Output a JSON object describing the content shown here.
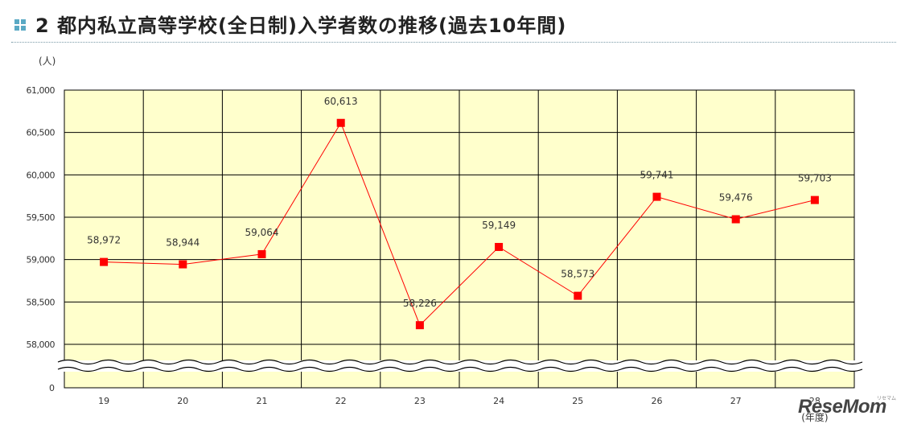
{
  "header": {
    "number": "2",
    "title": "都内私立高等学校(全日制)入学者数の推移(過去10年間)"
  },
  "watermark": {
    "brand": "ReseMom",
    "sub": "リセマム"
  },
  "colors": {
    "plot_bg": "#ffffcc",
    "series": "#ff0000",
    "grid": "#000000",
    "accent": "#5aa9c4"
  },
  "chart_data": {
    "type": "line",
    "title": "都内私立高等学校(全日制)入学者数の推移(過去10年間)",
    "ylabel": "(人)",
    "xlabel": "(年度)",
    "categories": [
      "19",
      "20",
      "21",
      "22",
      "23",
      "24",
      "25",
      "26",
      "27",
      "28"
    ],
    "values": [
      58972,
      58944,
      59064,
      60613,
      58226,
      59149,
      58573,
      59741,
      59476,
      59703
    ],
    "data_labels": [
      "58,972",
      "58,944",
      "59,064",
      "60,613",
      "58,226",
      "59,149",
      "58,573",
      "59,741",
      "59,476",
      "59,703"
    ],
    "y_ticks": [
      58000,
      58500,
      59000,
      59500,
      60000,
      60500,
      61000
    ],
    "y_tick_labels": [
      "58,000",
      "58,500",
      "59,000",
      "59,500",
      "60,000",
      "60,500",
      "61,000"
    ],
    "y_zero_label": "0",
    "ylim": [
      58000,
      61000
    ],
    "axis_break": true,
    "grid": true
  }
}
